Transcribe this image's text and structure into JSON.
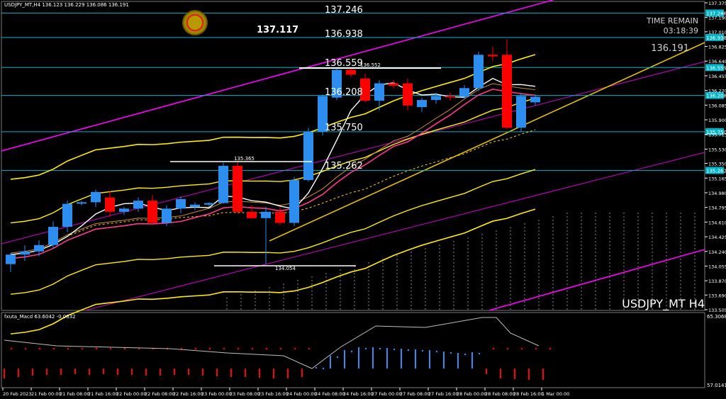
{
  "header": {
    "symbol_line": "USDJPY_MT,H4 136.123 136.229 136.086 136.191"
  },
  "status": {
    "time_remain_label": "TIME REMAIN",
    "time_remain_value": "03:18:39",
    "bid_value": "136.191",
    "current_price_label": "137.117",
    "watermark": "USDJPY_MT H4"
  },
  "colors": {
    "background": "#000000",
    "bull": "#2e8ef0",
    "bear": "#ff0000",
    "level_line": "#00b4c8",
    "yellow": "#ffee00",
    "magenta": "#ff00ff",
    "ichimoku": "#ffffff"
  },
  "level_labels": [
    {
      "text": "137.246",
      "price": 137.246
    },
    {
      "text": "136.938",
      "price": 136.938
    },
    {
      "text": "136.559",
      "price": 136.559
    },
    {
      "text": "136.208",
      "price": 136.208
    },
    {
      "text": "135.750",
      "price": 135.75
    },
    {
      "text": "135.262",
      "price": 135.262
    }
  ],
  "small_annotations": [
    {
      "text": "136.552",
      "price": 136.552
    },
    {
      "text": "135.365",
      "price": 135.365
    },
    {
      "text": "134.054",
      "price": 134.054
    }
  ],
  "macd_panel": {
    "title": "fxuta_Macd 63.6042 -0.0832",
    "top_value": "65.3068",
    "bottom_value": "57.0141"
  },
  "chart_data": {
    "type": "candlestick",
    "title": "USDJPY_MT,H4",
    "ylim": [
      133.505,
      137.375
    ],
    "y_ticks": [
      "137.375",
      "137.190",
      "137.010",
      "136.825",
      "136.640",
      "136.455",
      "136.270",
      "136.085",
      "135.900",
      "135.715",
      "135.530",
      "135.350",
      "135.165",
      "134.980",
      "134.795",
      "134.610",
      "134.425",
      "134.240",
      "134.055",
      "133.870",
      "133.690",
      "133.505"
    ],
    "right_markers": [
      "137.246",
      "136.938",
      "136.559",
      "136.208",
      "135.750",
      "135.262"
    ],
    "x_labels": [
      "20 Feb 2023",
      "21 Feb 00:00",
      "21 Feb 08:00",
      "21 Feb 16:00",
      "22 Feb 00:00",
      "22 Feb 08:00",
      "22 Feb 16:00",
      "23 Feb 00:00",
      "23 Feb 08:00",
      "23 Feb 16:00",
      "24 Feb 00:00",
      "24 Feb 08:00",
      "24 Feb 16:00",
      "27 Feb 00:00",
      "27 Feb 08:00",
      "27 Feb 16:00",
      "28 Feb 00:00",
      "28 Feb 08:00",
      "28 Feb 16:00",
      "1 Mar 00:00"
    ],
    "candles": [
      {
        "o": 134.08,
        "h": 134.22,
        "l": 133.98,
        "c": 134.2
      },
      {
        "o": 134.2,
        "h": 134.32,
        "l": 134.12,
        "c": 134.24
      },
      {
        "o": 134.24,
        "h": 134.38,
        "l": 134.18,
        "c": 134.32
      },
      {
        "o": 134.32,
        "h": 134.62,
        "l": 134.28,
        "c": 134.55
      },
      {
        "o": 134.55,
        "h": 134.88,
        "l": 134.48,
        "c": 134.84
      },
      {
        "o": 134.85,
        "h": 134.88,
        "l": 134.82,
        "c": 134.86
      },
      {
        "o": 134.86,
        "h": 135.02,
        "l": 134.8,
        "c": 134.99
      },
      {
        "o": 134.92,
        "h": 135.0,
        "l": 134.68,
        "c": 134.74
      },
      {
        "o": 134.74,
        "h": 134.8,
        "l": 134.7,
        "c": 134.78
      },
      {
        "o": 134.78,
        "h": 134.92,
        "l": 134.74,
        "c": 134.88
      },
      {
        "o": 134.88,
        "h": 134.95,
        "l": 134.58,
        "c": 134.6
      },
      {
        "o": 134.6,
        "h": 134.82,
        "l": 134.56,
        "c": 134.78
      },
      {
        "o": 134.78,
        "h": 134.94,
        "l": 134.72,
        "c": 134.9
      },
      {
        "o": 134.8,
        "h": 134.86,
        "l": 134.76,
        "c": 134.83
      },
      {
        "o": 134.83,
        "h": 134.86,
        "l": 134.8,
        "c": 134.85
      },
      {
        "o": 134.85,
        "h": 135.36,
        "l": 134.84,
        "c": 135.32
      },
      {
        "o": 135.32,
        "h": 135.38,
        "l": 134.72,
        "c": 134.74
      },
      {
        "o": 134.74,
        "h": 134.82,
        "l": 134.65,
        "c": 134.66
      },
      {
        "o": 134.66,
        "h": 134.8,
        "l": 134.08,
        "c": 134.74
      },
      {
        "o": 134.74,
        "h": 134.8,
        "l": 134.58,
        "c": 134.6
      },
      {
        "o": 134.6,
        "h": 135.18,
        "l": 134.56,
        "c": 135.14
      },
      {
        "o": 135.14,
        "h": 135.8,
        "l": 135.12,
        "c": 135.75
      },
      {
        "o": 135.75,
        "h": 136.22,
        "l": 135.7,
        "c": 136.2
      },
      {
        "o": 136.18,
        "h": 136.56,
        "l": 136.15,
        "c": 136.53
      },
      {
        "o": 136.53,
        "h": 136.56,
        "l": 136.44,
        "c": 136.47
      },
      {
        "o": 136.42,
        "h": 136.48,
        "l": 136.12,
        "c": 136.14
      },
      {
        "o": 136.14,
        "h": 136.4,
        "l": 136.02,
        "c": 136.36
      },
      {
        "o": 136.36,
        "h": 136.4,
        "l": 136.3,
        "c": 136.33
      },
      {
        "o": 136.36,
        "h": 136.42,
        "l": 136.02,
        "c": 136.08
      },
      {
        "o": 136.06,
        "h": 136.18,
        "l": 136.0,
        "c": 136.15
      },
      {
        "o": 136.15,
        "h": 136.24,
        "l": 136.1,
        "c": 136.2
      },
      {
        "o": 136.2,
        "h": 136.24,
        "l": 136.14,
        "c": 136.19
      },
      {
        "o": 136.19,
        "h": 136.34,
        "l": 136.16,
        "c": 136.3
      },
      {
        "o": 136.3,
        "h": 136.76,
        "l": 136.26,
        "c": 136.72
      },
      {
        "o": 136.72,
        "h": 136.82,
        "l": 136.64,
        "c": 136.7
      },
      {
        "o": 136.72,
        "h": 136.92,
        "l": 135.78,
        "c": 135.8
      },
      {
        "o": 135.8,
        "h": 136.24,
        "l": 135.74,
        "c": 136.2
      },
      {
        "o": 136.12,
        "h": 136.22,
        "l": 136.08,
        "c": 136.19
      }
    ]
  }
}
